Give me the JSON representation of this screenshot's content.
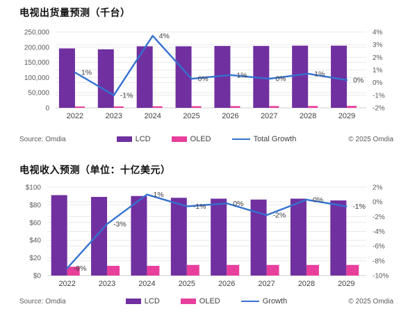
{
  "colors": {
    "lcd": "#7030A0",
    "oled": "#E83E9C",
    "growth_line": "#3471D0",
    "grid": "#E9E9E9",
    "axis_line": "#CFCFCF",
    "axis_text": "#595959",
    "data_label_text": "#3D3D3D",
    "title_text": "#111111",
    "background": "#FFFFFF"
  },
  "chart_data": [
    {
      "type": "bar+line",
      "title": "电视出货量预测（千台）",
      "source": "Source: Omdia",
      "copyright": "© 2025 Omdia",
      "categories": [
        "2022",
        "2023",
        "2024",
        "2025",
        "2026",
        "2027",
        "2028",
        "2029"
      ],
      "bar_series": [
        {
          "name": "LCD",
          "color_key": "lcd",
          "values": [
            196000,
            193000,
            203000,
            203000,
            204000,
            204000,
            205000,
            205000
          ]
        },
        {
          "name": "OLED",
          "color_key": "oled",
          "values": [
            4500,
            4800,
            5200,
            5500,
            5800,
            6000,
            6200,
            6500
          ]
        }
      ],
      "line_series": {
        "name": "Total Growth",
        "color_key": "growth_line",
        "values": [
          0.8,
          -1.0,
          3.7,
          0.3,
          0.6,
          0.3,
          0.7,
          0.2
        ],
        "point_labels": [
          "1%",
          "-1%",
          "4%",
          "0%",
          "1%",
          "0%",
          "1%",
          "0%"
        ]
      },
      "y_left": {
        "min": 0,
        "max": 250000,
        "ticks": [
          "250,000",
          "200,000",
          "150,000",
          "100,000",
          "50,000",
          "0"
        ]
      },
      "y_right": {
        "min": -2,
        "max": 4,
        "ticks": [
          "4%",
          "3%",
          "2%",
          "1%",
          "0%",
          "-1%",
          "-2%"
        ]
      },
      "legend": [
        "LCD",
        "OLED",
        "Total Growth"
      ],
      "legend_position": "bottom",
      "grid": true
    },
    {
      "type": "bar+line",
      "title": "电视收入预测（单位：十亿美元）",
      "source": "Source: Omdia",
      "copyright": "© 2025 Omdia",
      "categories": [
        "2022",
        "2023",
        "2024",
        "2025",
        "2026",
        "2027",
        "2028",
        "2029"
      ],
      "bar_series": [
        {
          "name": "LCD",
          "color_key": "lcd",
          "values": [
            91,
            89,
            90,
            88,
            87,
            86,
            87,
            85
          ]
        },
        {
          "name": "OLED",
          "color_key": "oled",
          "values": [
            10,
            11,
            11,
            12,
            12,
            12,
            12,
            12
          ]
        }
      ],
      "line_series": {
        "name": "Growth",
        "color_key": "growth_line",
        "values": [
          -9,
          -3,
          1.0,
          -0.6,
          -0.2,
          -1.8,
          0.3,
          -0.6
        ],
        "point_labels": [
          "-9%",
          "-3%",
          "1%",
          "-1%",
          "0%",
          "-2%",
          "0%",
          "-1%"
        ]
      },
      "y_left": {
        "min": 0,
        "max": 100,
        "ticks": [
          "$100",
          "$80",
          "$60",
          "$40",
          "$20",
          "$0"
        ]
      },
      "y_right": {
        "min": -10,
        "max": 2,
        "ticks": [
          "2%",
          "0%",
          "-2%",
          "-4%",
          "-6%",
          "-8%",
          "-10%"
        ]
      },
      "legend": [
        "LCD",
        "OLED",
        "Growth"
      ],
      "legend_position": "bottom",
      "grid": true
    }
  ]
}
